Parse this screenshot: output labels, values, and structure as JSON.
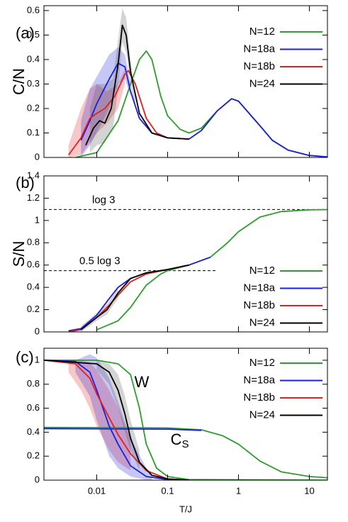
{
  "chart_data": [
    {
      "type": "line",
      "panel_label": "(a)",
      "ylabel": "C/N",
      "xscale": "log",
      "xlim": [
        0.0018,
        18
      ],
      "xticks": [
        0.01,
        0.1,
        1,
        10
      ],
      "show_xtick_labels": false,
      "ylim": [
        0,
        0.62
      ],
      "yticks": [
        0,
        0.1,
        0.2,
        0.3,
        0.4,
        0.5,
        0.6
      ],
      "bands": [
        {
          "color": "#e22020",
          "x": [
            0.004,
            0.006,
            0.008,
            0.01,
            0.014,
            0.02,
            0.025
          ],
          "lower": [
            0,
            0.01,
            0.06,
            0.1,
            0.14,
            0.2,
            0.3
          ],
          "upper": [
            0.05,
            0.2,
            0.28,
            0.3,
            0.27,
            0.3,
            0.36
          ]
        },
        {
          "color": "#1f1fd6",
          "x": [
            0.006,
            0.008,
            0.01,
            0.015,
            0.02,
            0.025,
            0.03
          ],
          "lower": [
            0,
            0.05,
            0.1,
            0.2,
            0.3,
            0.32,
            0.25
          ],
          "upper": [
            0.15,
            0.28,
            0.33,
            0.42,
            0.45,
            0.42,
            0.3
          ]
        },
        {
          "color": "#555555",
          "x": [
            0.008,
            0.01,
            0.013,
            0.017,
            0.02,
            0.023,
            0.026,
            0.03,
            0.035
          ],
          "lower": [
            0.02,
            0.05,
            0.06,
            0.12,
            0.28,
            0.47,
            0.43,
            0.3,
            0.2
          ],
          "upper": [
            0.2,
            0.3,
            0.3,
            0.32,
            0.48,
            0.61,
            0.57,
            0.4,
            0.25
          ]
        }
      ],
      "series": [
        {
          "name": "N=12",
          "color": "#2e9c2e",
          "x": [
            0.005,
            0.01,
            0.02,
            0.03,
            0.04,
            0.05,
            0.06,
            0.08,
            0.1,
            0.15,
            0.2,
            0.3,
            0.5,
            0.8,
            1,
            2,
            3,
            5,
            10,
            18
          ],
          "values": [
            0,
            0.02,
            0.15,
            0.3,
            0.4,
            0.435,
            0.4,
            0.25,
            0.17,
            0.115,
            0.1,
            0.12,
            0.19,
            0.24,
            0.23,
            0.13,
            0.07,
            0.03,
            0.008,
            0.002
          ]
        },
        {
          "name": "N=18a",
          "color": "#1f1fd6",
          "x": [
            0.006,
            0.008,
            0.01,
            0.015,
            0.02,
            0.025,
            0.03,
            0.04,
            0.06,
            0.1,
            0.2,
            0.3,
            0.5,
            0.8,
            1,
            2,
            3,
            5,
            10,
            18
          ],
          "values": [
            0.07,
            0.15,
            0.22,
            0.32,
            0.385,
            0.37,
            0.27,
            0.16,
            0.1,
            0.08,
            0.075,
            0.11,
            0.19,
            0.24,
            0.23,
            0.13,
            0.07,
            0.03,
            0.008,
            0.002
          ]
        },
        {
          "name": "N=18b",
          "color": "#e22020",
          "x": [
            0.004,
            0.006,
            0.008,
            0.01,
            0.013,
            0.018,
            0.025,
            0.028,
            0.035,
            0.05,
            0.07,
            0.1,
            0.2
          ],
          "values": [
            0.01,
            0.08,
            0.16,
            0.18,
            0.2,
            0.25,
            0.34,
            0.355,
            0.3,
            0.16,
            0.1,
            0.08,
            0.075
          ]
        },
        {
          "name": "N=24",
          "color": "#000000",
          "x": [
            0.007,
            0.009,
            0.011,
            0.013,
            0.016,
            0.02,
            0.023,
            0.026,
            0.03,
            0.04,
            0.06,
            0.1,
            0.2
          ],
          "values": [
            0.05,
            0.12,
            0.15,
            0.14,
            0.2,
            0.38,
            0.54,
            0.5,
            0.35,
            0.18,
            0.1,
            0.08,
            0.075
          ]
        }
      ]
    },
    {
      "type": "line",
      "panel_label": "(b)",
      "ylabel": "S/N",
      "xscale": "log",
      "xlim": [
        0.0018,
        18
      ],
      "xticks": [
        0.01,
        0.1,
        1,
        10
      ],
      "show_xtick_labels": false,
      "ylim": [
        0,
        1.4
      ],
      "yticks": [
        0,
        0.2,
        0.4,
        0.6,
        0.8,
        1,
        1.2,
        1.4
      ],
      "reference_lines": [
        {
          "label": "log 3",
          "y": 1.0986,
          "xlim": [
            0.0018,
            18
          ]
        },
        {
          "label": "0.5 log 3",
          "y": 0.5493,
          "xlim": [
            0.0018,
            0.5
          ]
        }
      ],
      "bands": [
        {
          "color": "#555555",
          "x": [
            0.006,
            0.01,
            0.014,
            0.02
          ],
          "lower": [
            0,
            0.1,
            0.16,
            0.3
          ],
          "upper": [
            0.05,
            0.17,
            0.25,
            0.4
          ]
        }
      ],
      "series": [
        {
          "name": "N=12",
          "color": "#2e9c2e",
          "x": [
            0.01,
            0.02,
            0.03,
            0.05,
            0.08,
            0.1,
            0.2,
            0.4,
            0.7,
            1,
            2,
            4,
            10,
            18
          ],
          "values": [
            0.02,
            0.1,
            0.22,
            0.42,
            0.52,
            0.55,
            0.6,
            0.67,
            0.8,
            0.9,
            1.03,
            1.08,
            1.095,
            1.098
          ]
        },
        {
          "name": "N=18a",
          "color": "#1f1fd6",
          "x": [
            0.004,
            0.006,
            0.01,
            0.015,
            0.02,
            0.03,
            0.05,
            0.1,
            0.2,
            0.4
          ],
          "values": [
            0.01,
            0.03,
            0.15,
            0.3,
            0.4,
            0.48,
            0.53,
            0.56,
            0.6,
            0.67
          ]
        },
        {
          "name": "N=18b",
          "color": "#e22020",
          "x": [
            0.004,
            0.006,
            0.01,
            0.015,
            0.02,
            0.03,
            0.05,
            0.1,
            0.2
          ],
          "values": [
            0,
            0.02,
            0.13,
            0.24,
            0.33,
            0.45,
            0.52,
            0.56,
            0.6
          ]
        },
        {
          "name": "N=24",
          "color": "#000000",
          "x": [
            0.006,
            0.01,
            0.014,
            0.02,
            0.03,
            0.05,
            0.1,
            0.2
          ],
          "values": [
            0.02,
            0.13,
            0.2,
            0.35,
            0.48,
            0.53,
            0.56,
            0.6
          ]
        }
      ]
    },
    {
      "type": "line",
      "panel_label": "(c)",
      "xlabel": "T/J",
      "xscale": "log",
      "xlim": [
        0.0018,
        18
      ],
      "xticks": [
        0.01,
        0.1,
        1,
        10
      ],
      "show_xtick_labels": true,
      "ylim": [
        0,
        1.1
      ],
      "yticks": [
        0,
        0.2,
        0.4,
        0.6,
        0.8,
        1
      ],
      "annotations": [
        {
          "text": "W",
          "x": 0.034,
          "y": 0.81
        },
        {
          "text": "C",
          "sub": "S",
          "x": 0.11,
          "y": 0.33
        }
      ],
      "bands": [
        {
          "color": "#e22020",
          "x": [
            0.004,
            0.006,
            0.008,
            0.01,
            0.015,
            0.02,
            0.03
          ],
          "lower": [
            0.9,
            0.75,
            0.6,
            0.45,
            0.25,
            0.15,
            0.08
          ],
          "upper": [
            1,
            1,
            0.98,
            0.92,
            0.75,
            0.6,
            0.35
          ]
        },
        {
          "color": "#1f1fd6",
          "x": [
            0.005,
            0.008,
            0.01,
            0.015,
            0.02,
            0.03,
            0.05,
            0.06
          ],
          "lower": [
            0.9,
            0.7,
            0.5,
            0.2,
            0.1,
            0.03,
            0,
            0
          ],
          "upper": [
            1,
            1.05,
            1.02,
            0.85,
            0.65,
            0.35,
            0.1,
            0.05
          ]
        },
        {
          "color": "#555555",
          "x": [
            0.01,
            0.015,
            0.02,
            0.025,
            0.03,
            0.04
          ],
          "lower": [
            0.92,
            0.8,
            0.6,
            0.4,
            0.25,
            0.08
          ],
          "upper": [
            1,
            0.97,
            0.88,
            0.7,
            0.5,
            0.25
          ]
        }
      ],
      "series": [
        {
          "name": "N=12",
          "color": "#2e9c2e",
          "x": [
            0.0018,
            0.01,
            0.02,
            0.03,
            0.04,
            0.05,
            0.07,
            0.1,
            0.2,
            18
          ],
          "values": [
            1,
            1,
            0.97,
            0.88,
            0.6,
            0.3,
            0.1,
            0.03,
            0.005,
            0
          ],
          "cs_x": [
            0.0018,
            0.1,
            0.3,
            0.6,
            1,
            2,
            4,
            10,
            18
          ],
          "cs_values": [
            0.44,
            0.435,
            0.42,
            0.37,
            0.3,
            0.16,
            0.07,
            0.03,
            0.02
          ]
        },
        {
          "name": "N=18a",
          "color": "#1f1fd6",
          "x": [
            0.0018,
            0.005,
            0.008,
            0.01,
            0.015,
            0.02,
            0.03,
            0.05,
            0.1,
            0.2
          ],
          "values": [
            1,
            0.99,
            0.9,
            0.75,
            0.45,
            0.3,
            0.12,
            0.03,
            0.005,
            0
          ],
          "cs_x": [
            0.0018,
            0.1,
            0.3
          ],
          "cs_values": [
            0.43,
            0.425,
            0.415
          ]
        },
        {
          "name": "N=18b",
          "color": "#e22020",
          "x": [
            0.0018,
            0.005,
            0.008,
            0.01,
            0.015,
            0.02,
            0.03,
            0.05,
            0.1,
            0.2
          ],
          "values": [
            1,
            0.97,
            0.85,
            0.72,
            0.52,
            0.38,
            0.22,
            0.08,
            0.01,
            0
          ]
        },
        {
          "name": "N=24",
          "color": "#000000",
          "x": [
            0.0018,
            0.01,
            0.015,
            0.02,
            0.025,
            0.03,
            0.04,
            0.06,
            0.1,
            0.2
          ],
          "values": [
            1,
            0.97,
            0.9,
            0.75,
            0.55,
            0.35,
            0.15,
            0.04,
            0.01,
            0
          ]
        }
      ]
    }
  ]
}
